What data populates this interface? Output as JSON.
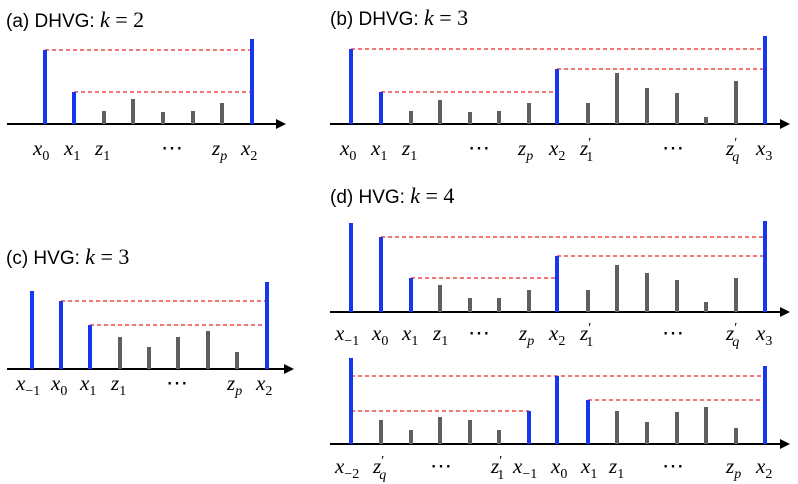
{
  "panels": {
    "a": {
      "tag": "(a) DHVG:",
      "k_var": "k",
      "k_eq": " = 2",
      "labels": [
        {
          "base": "x",
          "sub": "0"
        },
        {
          "base": "x",
          "sub": "1"
        },
        {
          "base": "z",
          "sub": "1"
        },
        {
          "dots": "⋯"
        },
        {
          "base": "z",
          "sub": "p",
          "sub_italic": true
        },
        {
          "base": "x",
          "sub": "2"
        }
      ]
    },
    "b": {
      "tag": "(b) DHVG:",
      "k_var": "k",
      "k_eq": " = 3",
      "labels": [
        {
          "base": "x",
          "sub": "0"
        },
        {
          "base": "x",
          "sub": "1"
        },
        {
          "base": "z",
          "sub": "1"
        },
        {
          "dots": "⋯"
        },
        {
          "base": "z",
          "sub": "p",
          "sub_italic": true
        },
        {
          "base": "x",
          "sub": "2"
        },
        {
          "base": "z",
          "sub": "1",
          "prime": "′"
        },
        {
          "dots": "⋯"
        },
        {
          "base": "z",
          "sub": "q",
          "sub_italic": true,
          "prime": "′"
        },
        {
          "base": "x",
          "sub": "3"
        }
      ]
    },
    "c": {
      "tag": "(c) HVG:",
      "k_var": "k",
      "k_eq": " = 3",
      "labels": [
        {
          "base": "x",
          "sub": "−1"
        },
        {
          "base": "x",
          "sub": "0"
        },
        {
          "base": "x",
          "sub": "1"
        },
        {
          "base": "z",
          "sub": "1"
        },
        {
          "dots": "⋯"
        },
        {
          "base": "z",
          "sub": "p",
          "sub_italic": true
        },
        {
          "base": "x",
          "sub": "2"
        }
      ]
    },
    "d": {
      "tag": "(d) HVG:",
      "k_var": "k",
      "k_eq": " = 4",
      "top_labels": [
        {
          "base": "x",
          "sub": "−1"
        },
        {
          "base": "x",
          "sub": "0"
        },
        {
          "base": "x",
          "sub": "1"
        },
        {
          "base": "z",
          "sub": "1"
        },
        {
          "dots": "⋯"
        },
        {
          "base": "z",
          "sub": "p",
          "sub_italic": true
        },
        {
          "base": "x",
          "sub": "2"
        },
        {
          "base": "z",
          "sub": "1",
          "prime": "′"
        },
        {
          "dots": "⋯"
        },
        {
          "base": "z",
          "sub": "q",
          "sub_italic": true,
          "prime": "′"
        },
        {
          "base": "x",
          "sub": "3"
        }
      ],
      "bottom_labels": [
        {
          "base": "x",
          "sub": "−2"
        },
        {
          "base": "z",
          "sub": "q",
          "sub_italic": true,
          "prime": "′"
        },
        {
          "dots": "⋯"
        },
        {
          "base": "z",
          "sub": "1",
          "prime": "′"
        },
        {
          "base": "x",
          "sub": "−1"
        },
        {
          "base": "x",
          "sub": "0"
        },
        {
          "base": "x",
          "sub": "1"
        },
        {
          "base": "z",
          "sub": "1"
        },
        {
          "dots": "⋯"
        },
        {
          "base": "z",
          "sub": "p",
          "sub_italic": true
        },
        {
          "base": "x",
          "sub": "2"
        }
      ]
    }
  },
  "colors": {
    "key_bar": "#1736f0",
    "inner_bar": "#5f5f5f",
    "visibility_line": "#f04a4a"
  }
}
